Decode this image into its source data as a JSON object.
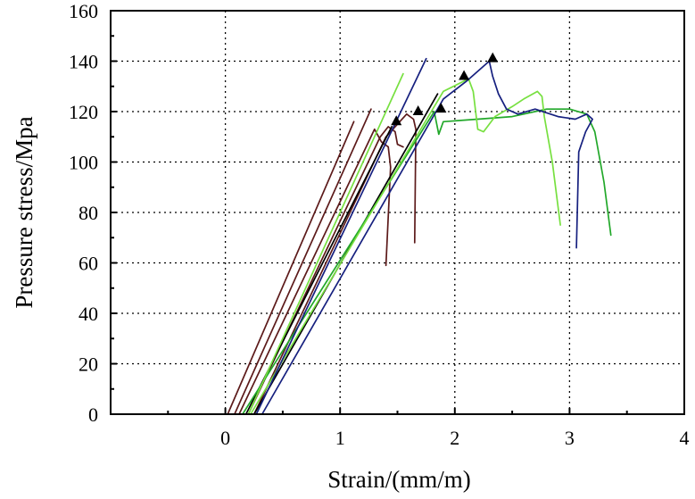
{
  "chart_data": {
    "type": "line",
    "xlabel": "Strain/(mm/m)",
    "ylabel": "Pressure stress/Mpa",
    "xlim": [
      -1,
      4
    ],
    "ylim": [
      0,
      160
    ],
    "x_ticks": [
      0,
      1,
      2,
      3,
      4
    ],
    "y_ticks": [
      0,
      20,
      40,
      60,
      80,
      100,
      120,
      140,
      160
    ],
    "x_minor_ticks": [
      -0.5,
      0.5,
      1.5,
      2.5,
      3.5
    ],
    "y_minor_ticks": [
      10,
      30,
      50,
      70,
      90,
      110,
      130,
      150
    ],
    "grid": true,
    "series": [
      {
        "color": "#5c1a1a",
        "points": [
          [
            0.02,
            0
          ],
          [
            1.12,
            116
          ]
        ]
      },
      {
        "color": "#5c1a1a",
        "points": [
          [
            0.08,
            0
          ],
          [
            1.27,
            121
          ]
        ]
      },
      {
        "color": "#5c1a1a",
        "points": [
          [
            0.12,
            0
          ],
          [
            1.3,
            113
          ],
          [
            1.36,
            108
          ],
          [
            1.42,
            106
          ],
          [
            1.44,
            98
          ],
          [
            1.4,
            59
          ]
        ]
      },
      {
        "color": "#5c1a1a",
        "points": [
          [
            0.2,
            0
          ],
          [
            1.35,
            110
          ],
          [
            1.42,
            114
          ],
          [
            1.48,
            112
          ],
          [
            1.5,
            107
          ],
          [
            1.55,
            106
          ]
        ]
      },
      {
        "color": "#5c1a1a",
        "points": [
          [
            0.25,
            0
          ],
          [
            1.4,
            110
          ],
          [
            1.58,
            119
          ],
          [
            1.64,
            117
          ],
          [
            1.66,
            113
          ],
          [
            1.65,
            68
          ]
        ]
      },
      {
        "color": "#000000",
        "points": [
          [
            0.18,
            0
          ],
          [
            1.45,
            114
          ]
        ]
      },
      {
        "color": "#000000",
        "points": [
          [
            0.25,
            0
          ],
          [
            1.85,
            127
          ]
        ]
      },
      {
        "color": "#22a82a",
        "points": [
          [
            0.15,
            0
          ],
          [
            1.82,
            120
          ],
          [
            1.86,
            111
          ],
          [
            1.9,
            116
          ],
          [
            2.2,
            117
          ],
          [
            2.5,
            118
          ],
          [
            2.8,
            121
          ],
          [
            3.0,
            121
          ],
          [
            3.15,
            119
          ],
          [
            3.22,
            112
          ],
          [
            3.3,
            92
          ],
          [
            3.36,
            71
          ]
        ]
      },
      {
        "color": "#77e040",
        "points": [
          [
            0.2,
            0
          ],
          [
            1.55,
            135
          ]
        ]
      },
      {
        "color": "#77e040",
        "points": [
          [
            0.22,
            0
          ],
          [
            1.9,
            128
          ],
          [
            2.12,
            133
          ],
          [
            2.16,
            128
          ],
          [
            2.2,
            113
          ],
          [
            2.25,
            112
          ],
          [
            2.35,
            118
          ],
          [
            2.5,
            122
          ],
          [
            2.6,
            125
          ],
          [
            2.72,
            128
          ],
          [
            2.76,
            126
          ],
          [
            2.78,
            118
          ],
          [
            2.85,
            100
          ],
          [
            2.92,
            75
          ]
        ]
      },
      {
        "color": "#16207f",
        "points": [
          [
            0.27,
            0
          ],
          [
            1.75,
            141
          ]
        ]
      },
      {
        "color": "#16207f",
        "points": [
          [
            0.32,
            0
          ],
          [
            1.9,
            125
          ],
          [
            2.1,
            132
          ],
          [
            2.3,
            140
          ],
          [
            2.33,
            134
          ],
          [
            2.38,
            127
          ],
          [
            2.45,
            121
          ],
          [
            2.55,
            119
          ],
          [
            2.7,
            121
          ],
          [
            2.9,
            118
          ],
          [
            3.05,
            117
          ],
          [
            3.15,
            119
          ],
          [
            3.2,
            117
          ],
          [
            3.14,
            112
          ],
          [
            3.08,
            104
          ],
          [
            3.06,
            66
          ]
        ]
      }
    ],
    "peak_markers": [
      [
        1.49,
        116
      ],
      [
        1.68,
        120
      ],
      [
        1.88,
        121
      ],
      [
        2.08,
        134
      ],
      [
        2.33,
        141
      ]
    ]
  }
}
